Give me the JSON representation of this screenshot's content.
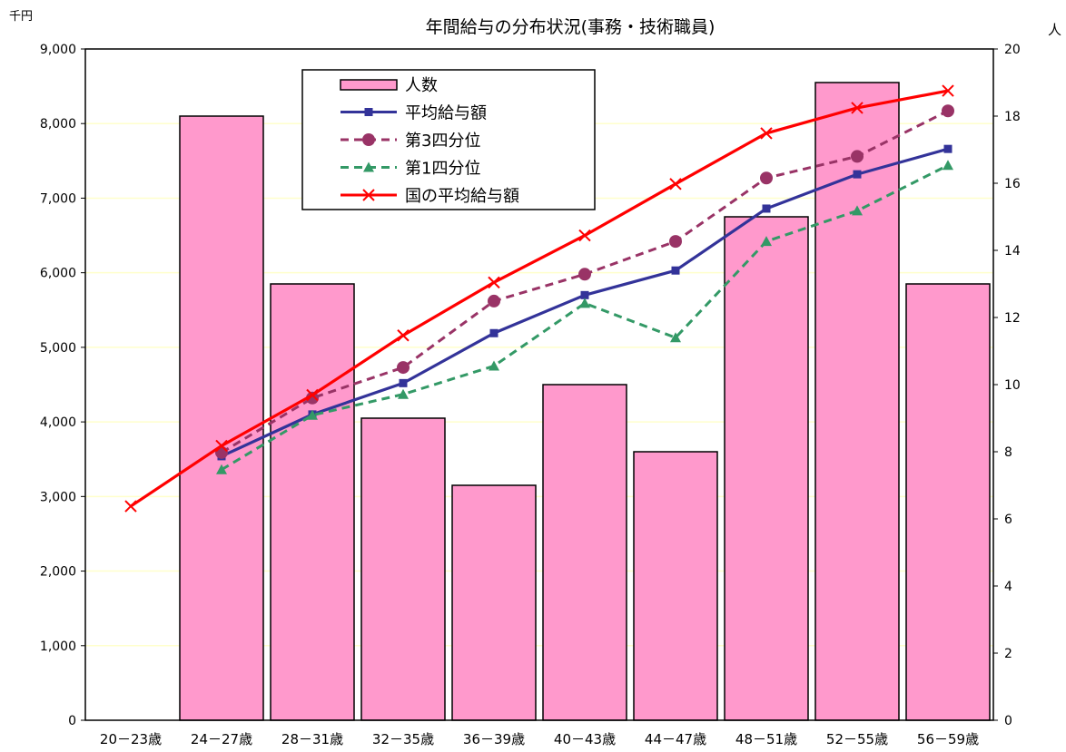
{
  "chart_data": {
    "type": "bar",
    "title": "年間給与の分布状況(事務・技術職員)",
    "y_left_unit": "千円",
    "y_right_unit": "人",
    "categories": [
      "20－23歳",
      "24－27歳",
      "28－31歳",
      "32－35歳",
      "36－39歳",
      "40－43歳",
      "44－47歳",
      "48－51歳",
      "52－55歳",
      "56－59歳"
    ],
    "y_left": {
      "min": 0,
      "max": 9000,
      "step": 1000,
      "ticks": [
        "0",
        "1,000",
        "2,000",
        "3,000",
        "4,000",
        "5,000",
        "6,000",
        "7,000",
        "8,000",
        "9,000"
      ]
    },
    "y_right": {
      "min": 0,
      "max": 20,
      "step": 2,
      "ticks": [
        "0",
        "2",
        "4",
        "6",
        "8",
        "10",
        "12",
        "14",
        "16",
        "18",
        "20"
      ]
    },
    "grid": true,
    "legend_position": "top-left",
    "bar_series": {
      "name": "人数",
      "axis": "right",
      "color": "#ff99cc",
      "values": [
        0,
        18,
        13,
        9,
        7,
        10,
        8,
        15,
        19,
        13
      ]
    },
    "series": [
      {
        "name": "平均給与額",
        "axis": "left",
        "color": "#333399",
        "dash": "solid",
        "marker": "square",
        "values": [
          null,
          3540,
          4100,
          4520,
          5190,
          5700,
          6030,
          6860,
          7320,
          7660
        ]
      },
      {
        "name": "第3四分位",
        "axis": "left",
        "color": "#993366",
        "dash": "dashed",
        "marker": "circle",
        "values": [
          null,
          3590,
          4320,
          4730,
          5620,
          5980,
          6420,
          7270,
          7560,
          8170
        ]
      },
      {
        "name": "第1四分位",
        "axis": "left",
        "color": "#339966",
        "dash": "dashed",
        "marker": "triangle",
        "values": [
          null,
          3360,
          4090,
          4370,
          4750,
          5590,
          5130,
          6420,
          6830,
          7440
        ]
      },
      {
        "name": "国の平均給与額",
        "axis": "left",
        "color": "#ff0000",
        "dash": "solid",
        "marker": "x",
        "values": [
          2870,
          3680,
          4360,
          5160,
          5870,
          6500,
          7190,
          7870,
          8210,
          8440
        ]
      }
    ]
  }
}
